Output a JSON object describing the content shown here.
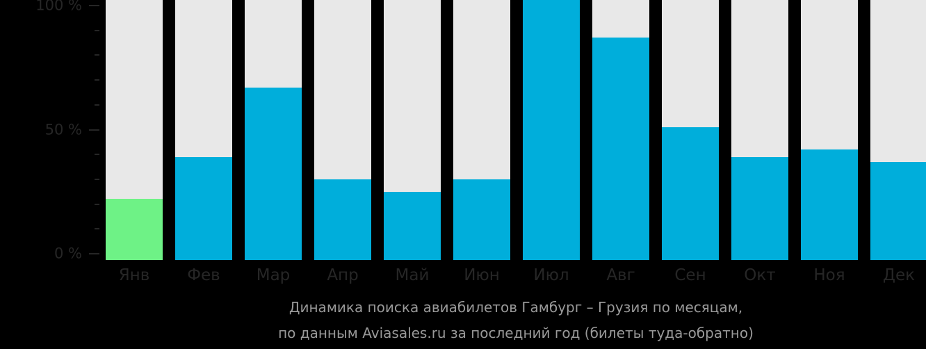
{
  "chart_data": {
    "type": "bar",
    "title": "Динамика поиска авиабилетов Гамбург – Грузия по месяцам,",
    "subtitle": "по данным Aviasales.ru за последний год (билеты туда-обратно)",
    "xlabel": "",
    "ylabel": "",
    "categories": [
      "Янв",
      "Фев",
      "Мар",
      "Апр",
      "Май",
      "Июн",
      "Июл",
      "Авг",
      "Сен",
      "Окт",
      "Ноя",
      "Дек"
    ],
    "values": [
      22,
      39,
      67,
      30,
      25,
      30,
      100,
      87,
      51,
      39,
      42,
      37
    ],
    "ylim": [
      0,
      100
    ],
    "y_ticks": [
      {
        "value": 100,
        "label": "100 %",
        "major": true
      },
      {
        "value": 90,
        "label": "",
        "major": false
      },
      {
        "value": 80,
        "label": "",
        "major": false
      },
      {
        "value": 70,
        "label": "",
        "major": false
      },
      {
        "value": 60,
        "label": "",
        "major": false
      },
      {
        "value": 50,
        "label": "50 %",
        "major": true
      },
      {
        "value": 40,
        "label": "",
        "major": false
      },
      {
        "value": 30,
        "label": "",
        "major": false
      },
      {
        "value": 20,
        "label": "",
        "major": false
      },
      {
        "value": 10,
        "label": "",
        "major": false
      },
      {
        "value": 0,
        "label": "0 %",
        "major": true
      }
    ],
    "grid": false,
    "legend": null,
    "highlight_index": 0,
    "colors": {
      "background": "#000000",
      "bar_track": "#e8e8e8",
      "bar_fill": "#00aedb",
      "bar_highlight": "#6ef286",
      "axis_text": "#262626",
      "caption_text": "#999999"
    }
  },
  "caption": {
    "line1": "Динамика поиска авиабилетов Гамбург – Грузия по месяцам,",
    "line2": "по данным Aviasales.ru за последний год (билеты туда-обратно)"
  }
}
